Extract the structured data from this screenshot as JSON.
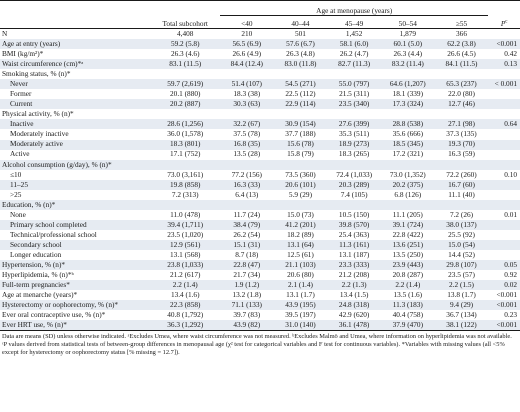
{
  "header": {
    "group_label": "Age at menopause (years)",
    "total_label": "Total subcohort",
    "cols": [
      "<40",
      "40–44",
      "45–49",
      "50–54",
      "≥55"
    ],
    "p_label": "P",
    "p_sup": "c"
  },
  "rows": [
    {
      "label": "N",
      "indent": false,
      "vals": [
        "4,408",
        "210",
        "501",
        "1,452",
        "1,879",
        "366",
        ""
      ]
    },
    {
      "label": "Age at entry (years)",
      "indent": false,
      "vals": [
        "59.2 (5.8)",
        "56.5 (6.9)",
        "57.6 (6.7)",
        "58.1 (6.0)",
        "60.1 (5.0)",
        "62.2 (3.8)",
        "<0.001"
      ]
    },
    {
      "label": "BMI (kg/m²)*",
      "indent": false,
      "vals": [
        "26.3 (4.6)",
        "26.6 (4.9)",
        "26.3 (4.8)",
        "26.2 (4.7)",
        "26.3 (4.4)",
        "26.6 (4.5)",
        "0.42"
      ]
    },
    {
      "label": "Waist circumference (cm)*ᵃ",
      "indent": false,
      "vals": [
        "83.1 (11.5)",
        "84.4 (12.4)",
        "83.0 (11.8)",
        "82.7 (11.3)",
        "83.2 (11.4)",
        "84.1 (11.5)",
        "0.13"
      ]
    },
    {
      "label": "Smoking status, % (n)*",
      "indent": false,
      "vals": [
        "",
        "",
        "",
        "",
        "",
        "",
        ""
      ]
    },
    {
      "label": "Never",
      "indent": true,
      "vals": [
        "59.7 (2,619)",
        "51.4 (107)",
        "54.5 (271)",
        "55.0 (797)",
        "64.6 (1,207)",
        "65.3 (237)",
        "< 0.001"
      ]
    },
    {
      "label": "Former",
      "indent": true,
      "vals": [
        "20.1 (880)",
        "18.3 (38)",
        "22.5 (112)",
        "21.5 (311)",
        "18.1 (339)",
        "22.0 (80)",
        ""
      ]
    },
    {
      "label": "Current",
      "indent": true,
      "vals": [
        "20.2 (887)",
        "30.3 (63)",
        "22.9 (114)",
        "23.5 (340)",
        "17.3 (324)",
        "12.7 (46)",
        ""
      ]
    },
    {
      "label": "Physical activity, % (n)*",
      "indent": false,
      "vals": [
        "",
        "",
        "",
        "",
        "",
        "",
        ""
      ]
    },
    {
      "label": "Inactive",
      "indent": true,
      "vals": [
        "28.6 (1,256)",
        "32.2 (67)",
        "30.9 (154)",
        "27.6 (399)",
        "28.8 (538)",
        "27.1 (98)",
        "0.64"
      ]
    },
    {
      "label": "Moderately inactive",
      "indent": true,
      "vals": [
        "36.0 (1,578)",
        "37.5 (78)",
        "37.7 (188)",
        "35.3 (511)",
        "35.6 (666)",
        "37.3 (135)",
        ""
      ]
    },
    {
      "label": "Moderately active",
      "indent": true,
      "vals": [
        "18.3 (801)",
        "16.8 (35)",
        "15.6 (78)",
        "18.9 (273)",
        "18.5 (345)",
        "19.3 (70)",
        ""
      ]
    },
    {
      "label": "Active",
      "indent": true,
      "vals": [
        "17.1 (752)",
        "13.5 (28)",
        "15.8 (79)",
        "18.3 (265)",
        "17.2 (321)",
        "16.3 (59)",
        ""
      ]
    },
    {
      "label": "Alcohol consumption (g/day), % (n)*",
      "indent": false,
      "vals": [
        "",
        "",
        "",
        "",
        "",
        "",
        ""
      ]
    },
    {
      "label": "≤10",
      "indent": true,
      "vals": [
        "73.0 (3,161)",
        "77.2 (156)",
        "73.5 (360)",
        "72.4 (1,033)",
        "73.0 (1,352)",
        "72.2 (260)",
        "0.10"
      ]
    },
    {
      "label": "11–25",
      "indent": true,
      "vals": [
        "19.8 (858)",
        "16.3 (33)",
        "20.6 (101)",
        "20.3 (289)",
        "20.2 (375)",
        "16.7 (60)",
        ""
      ]
    },
    {
      "label": ">25",
      "indent": true,
      "vals": [
        "7.2 (313)",
        "6.4 (13)",
        "5.9 (29)",
        "7.4 (105)",
        "6.8 (126)",
        "11.1 (40)",
        ""
      ]
    },
    {
      "label": "Education, % (n)*",
      "indent": false,
      "vals": [
        "",
        "",
        "",
        "",
        "",
        "",
        ""
      ]
    },
    {
      "label": "None",
      "indent": true,
      "vals": [
        "11.0 (478)",
        "11.7 (24)",
        "15.0 (73)",
        "10.5 (150)",
        "11.1 (205)",
        "7.2 (26)",
        "0.01"
      ]
    },
    {
      "label": "Primary school completed",
      "indent": true,
      "vals": [
        "39.4 (1,711)",
        "38.4 (79)",
        "41.2 (201)",
        "39.8 (570)",
        "39.1 (724)",
        "38.0 (137)",
        ""
      ]
    },
    {
      "label": "Technical/professional school",
      "indent": true,
      "vals": [
        "23.5 (1,020)",
        "26.2 (54)",
        "18.2 (89)",
        "25.4 (363)",
        "22.8 (422)",
        "25.5 (92)",
        ""
      ]
    },
    {
      "label": "Secondary school",
      "indent": true,
      "vals": [
        "12.9 (561)",
        "15.1 (31)",
        "13.1 (64)",
        "11.3 (161)",
        "13.6 (251)",
        "15.0 (54)",
        ""
      ]
    },
    {
      "label": "Longer education",
      "indent": true,
      "vals": [
        "13.1 (568)",
        "8.7 (18)",
        "12.5 (61)",
        "13.1 (187)",
        "13.5 (250)",
        "14.4 (52)",
        ""
      ]
    },
    {
      "label": "Hypertension, % (n)*",
      "indent": false,
      "vals": [
        "23.8 (1,033)",
        "22.8 (47)",
        "21.1 (103)",
        "23.3 (333)",
        "23.9 (443)",
        "29.8 (107)",
        "0.05"
      ]
    },
    {
      "label": "Hyperlipidemia, % (n)*ᵇ",
      "indent": false,
      "vals": [
        "21.2 (617)",
        "21.7 (34)",
        "20.6 (80)",
        "21.2 (208)",
        "20.8 (287)",
        "23.5 (57)",
        "0.92"
      ]
    },
    {
      "label": "Full-term pregnancies*",
      "indent": false,
      "vals": [
        "2.2 (1.4)",
        "1.9 (1.2)",
        "2.1 (1.4)",
        "2.2 (1.3)",
        "2.2 (1.4)",
        "2.2 (1.5)",
        "0.02"
      ]
    },
    {
      "label": "Age at menarche (years)*",
      "indent": false,
      "vals": [
        "13.4 (1.6)",
        "13.2 (1.8)",
        "13.1 (1.7)",
        "13.4 (1.5)",
        "13.5 (1.6)",
        "13.8 (1.7)",
        "<0.001"
      ]
    },
    {
      "label": "Hysterectomy or oophorectomy, % (n)*",
      "indent": false,
      "vals": [
        "22.3 (858)",
        "71.1 (133)",
        "43.9 (195)",
        "24.8 (318)",
        "11.3 (183)",
        "9.4 (29)",
        "<0.001"
      ]
    },
    {
      "label": "Ever oral contraceptive use, % (n)*",
      "indent": false,
      "vals": [
        "40.8 (1,792)",
        "39.7 (83)",
        "39.5 (197)",
        "42.9 (620)",
        "40.4 (758)",
        "36.7 (134)",
        "0.23"
      ]
    },
    {
      "label": "Ever HRT use, % (n)*",
      "indent": false,
      "vals": [
        "36.3 (1,292)",
        "43.9 (82)",
        "31.0 (140)",
        "36.1 (478)",
        "37.9 (470)",
        "38.1 (122)",
        "<0.001"
      ]
    }
  ],
  "footnote": "Data are means (SD) unless otherwise indicated. ᵃExcludes Umea, where waist circumference was not measured. ᵇExcludes Malmö and Umea, where information on hyperlipidemia was not available. ᶜP values derived from statistical tests of between-group differences in menopausal age (χ² test for categorical variables and F test for continuous variables). *Variables with missing values (all <5% except for hysterectomy or oophorectomy status [% missing = 12.7])."
}
